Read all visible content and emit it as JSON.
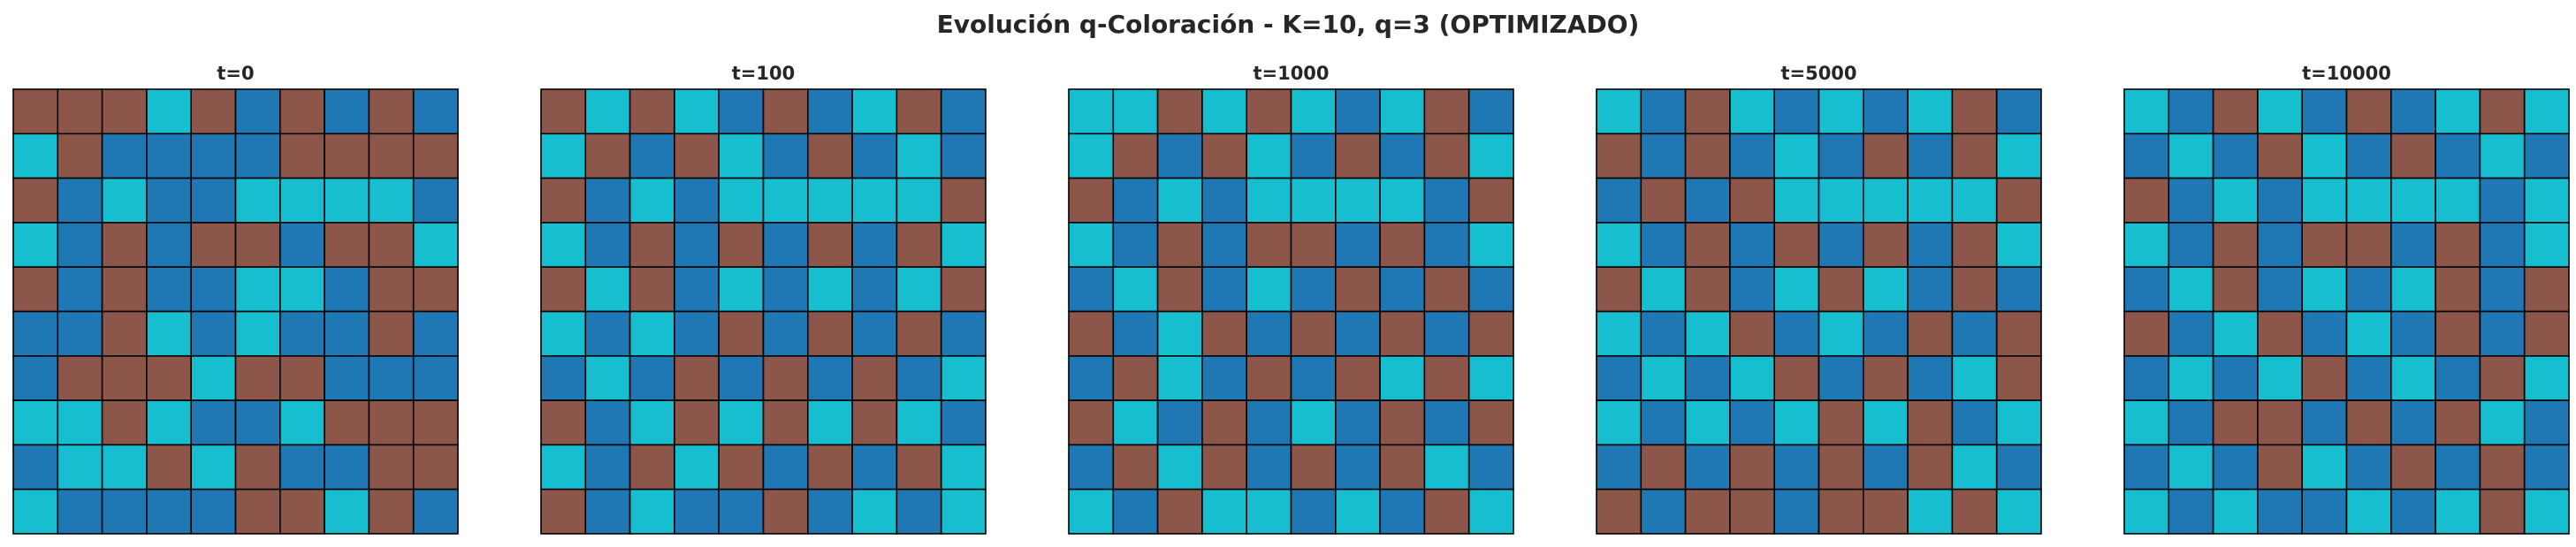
{
  "chart_data": {
    "type": "heatmap",
    "title": "Evolución q-Coloración - K=10, q=3 (OPTIMIZADO)",
    "grid_size": 10,
    "q": 3,
    "colors": [
      "#8c564b",
      "#1f77b4",
      "#17becf"
    ],
    "state_legend": {
      "0": "brown",
      "1": "blue",
      "2": "cyan"
    },
    "panels": [
      {
        "title": "t=0",
        "grid": [
          [
            0,
            0,
            0,
            2,
            0,
            1,
            0,
            1,
            0,
            1
          ],
          [
            2,
            0,
            1,
            1,
            1,
            1,
            0,
            0,
            0,
            0
          ],
          [
            0,
            1,
            2,
            1,
            1,
            2,
            2,
            2,
            2,
            1
          ],
          [
            2,
            1,
            0,
            1,
            0,
            0,
            1,
            0,
            0,
            2
          ],
          [
            0,
            1,
            0,
            1,
            1,
            2,
            2,
            1,
            0,
            0
          ],
          [
            1,
            1,
            0,
            2,
            1,
            2,
            1,
            1,
            0,
            1
          ],
          [
            1,
            0,
            0,
            0,
            2,
            0,
            0,
            1,
            1,
            1
          ],
          [
            2,
            2,
            0,
            2,
            1,
            1,
            2,
            0,
            0,
            0
          ],
          [
            1,
            2,
            2,
            0,
            2,
            0,
            1,
            1,
            0,
            0
          ],
          [
            2,
            1,
            1,
            1,
            1,
            0,
            0,
            2,
            0,
            1
          ]
        ]
      },
      {
        "title": "t=100",
        "grid": [
          [
            0,
            2,
            0,
            2,
            1,
            0,
            1,
            2,
            0,
            1
          ],
          [
            2,
            0,
            1,
            0,
            2,
            1,
            0,
            1,
            2,
            1
          ],
          [
            0,
            1,
            2,
            1,
            2,
            2,
            2,
            2,
            2,
            0
          ],
          [
            2,
            1,
            0,
            1,
            0,
            1,
            0,
            1,
            0,
            2
          ],
          [
            0,
            2,
            0,
            1,
            2,
            1,
            2,
            1,
            2,
            0
          ],
          [
            2,
            1,
            2,
            1,
            0,
            1,
            0,
            1,
            0,
            1
          ],
          [
            1,
            2,
            1,
            0,
            1,
            0,
            1,
            0,
            1,
            2
          ],
          [
            0,
            1,
            2,
            0,
            2,
            0,
            2,
            0,
            2,
            1
          ],
          [
            2,
            1,
            0,
            2,
            0,
            1,
            0,
            1,
            0,
            2
          ],
          [
            0,
            1,
            2,
            1,
            1,
            0,
            1,
            2,
            1,
            2
          ]
        ]
      },
      {
        "title": "t=1000",
        "grid": [
          [
            2,
            2,
            0,
            2,
            0,
            2,
            1,
            2,
            0,
            1
          ],
          [
            2,
            0,
            1,
            0,
            2,
            1,
            0,
            1,
            0,
            2
          ],
          [
            0,
            1,
            2,
            1,
            2,
            2,
            2,
            2,
            1,
            0
          ],
          [
            2,
            1,
            0,
            1,
            0,
            0,
            1,
            0,
            1,
            2
          ],
          [
            1,
            2,
            0,
            1,
            2,
            1,
            0,
            1,
            0,
            1
          ],
          [
            0,
            1,
            2,
            0,
            1,
            0,
            1,
            0,
            1,
            0
          ],
          [
            1,
            0,
            2,
            1,
            0,
            1,
            0,
            2,
            0,
            2
          ],
          [
            0,
            2,
            1,
            0,
            1,
            2,
            1,
            0,
            1,
            0
          ],
          [
            1,
            0,
            2,
            0,
            1,
            0,
            1,
            0,
            2,
            1
          ],
          [
            2,
            1,
            0,
            2,
            2,
            1,
            2,
            1,
            0,
            2
          ]
        ]
      },
      {
        "title": "t=5000",
        "grid": [
          [
            2,
            1,
            0,
            2,
            1,
            2,
            1,
            2,
            0,
            1
          ],
          [
            0,
            1,
            0,
            1,
            2,
            1,
            0,
            1,
            0,
            2
          ],
          [
            1,
            0,
            1,
            0,
            2,
            2,
            2,
            2,
            2,
            0
          ],
          [
            2,
            1,
            0,
            1,
            0,
            1,
            0,
            1,
            0,
            2
          ],
          [
            0,
            2,
            0,
            1,
            2,
            0,
            2,
            1,
            0,
            1
          ],
          [
            2,
            1,
            2,
            0,
            1,
            2,
            1,
            0,
            1,
            0
          ],
          [
            1,
            2,
            1,
            2,
            0,
            1,
            0,
            1,
            2,
            0
          ],
          [
            2,
            1,
            2,
            1,
            2,
            0,
            2,
            0,
            1,
            2
          ],
          [
            1,
            0,
            1,
            0,
            1,
            0,
            1,
            0,
            2,
            1
          ],
          [
            0,
            1,
            0,
            0,
            1,
            0,
            0,
            2,
            0,
            2
          ]
        ]
      },
      {
        "title": "t=10000",
        "grid": [
          [
            2,
            1,
            0,
            2,
            1,
            0,
            1,
            2,
            0,
            2
          ],
          [
            1,
            2,
            1,
            0,
            2,
            1,
            0,
            1,
            2,
            1
          ],
          [
            0,
            1,
            2,
            1,
            2,
            2,
            2,
            2,
            1,
            2
          ],
          [
            2,
            1,
            0,
            1,
            0,
            0,
            1,
            0,
            1,
            2
          ],
          [
            1,
            2,
            0,
            1,
            2,
            1,
            2,
            0,
            1,
            0
          ],
          [
            0,
            1,
            2,
            0,
            1,
            2,
            1,
            0,
            1,
            0
          ],
          [
            1,
            2,
            1,
            2,
            0,
            1,
            2,
            1,
            0,
            2
          ],
          [
            2,
            1,
            0,
            0,
            1,
            0,
            1,
            0,
            2,
            1
          ],
          [
            1,
            2,
            1,
            0,
            2,
            1,
            0,
            1,
            0,
            1
          ],
          [
            2,
            1,
            2,
            1,
            1,
            2,
            1,
            2,
            0,
            2
          ]
        ]
      }
    ]
  }
}
